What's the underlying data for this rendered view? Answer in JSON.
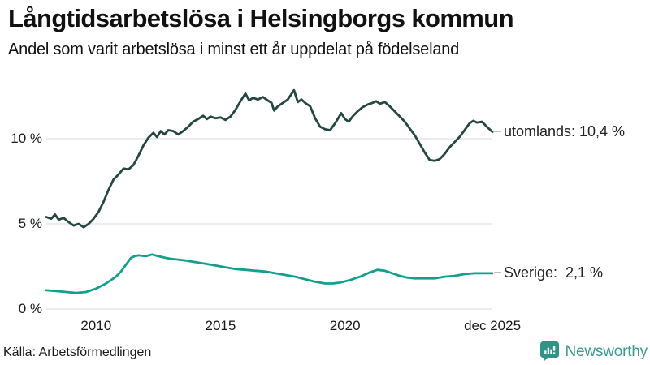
{
  "header": {
    "title": "Långtidsarbetslösa i Helsingborgs kommun",
    "subtitle": "Andel som varit arbetslösa i minst ett år uppdelat på födelseland"
  },
  "footer": {
    "source": "Källa: Arbetsförmedlingen",
    "brand": "Newsworthy"
  },
  "colors": {
    "series_utomlands": "#254742",
    "series_sverige": "#12a08e",
    "grid": "#e1e1e6",
    "label_dash": "#8f8f8f",
    "brand_teal": "#3a9c91",
    "text": "#111111"
  },
  "chart_data": {
    "type": "line",
    "title": "Långtidsarbetslösa i Helsingborgs kommun",
    "subtitle": "Andel som varit arbetslösa i minst ett år uppdelat på födelseland",
    "x": {
      "range": [
        2008,
        2025.92
      ],
      "ticks": [
        {
          "label": "2010",
          "value": 2010
        },
        {
          "label": "2015",
          "value": 2015
        },
        {
          "label": "2020",
          "value": 2020
        },
        {
          "label": "dec 2025",
          "value": 2025.92
        }
      ],
      "grid": false
    },
    "y": {
      "range": [
        0,
        13.2
      ],
      "unit": "%",
      "ticks": [
        {
          "label": "0 %",
          "value": 0
        },
        {
          "label": "5 %",
          "value": 5
        },
        {
          "label": "10 %",
          "value": 10
        }
      ],
      "grid": true
    },
    "legend_position": "right-end-labels",
    "series": [
      {
        "name": "utomlands",
        "end_label": "utomlands: 10,4 %",
        "end_value": 10.4,
        "color": "#254742",
        "points": [
          [
            2008.0,
            5.4
          ],
          [
            2008.2,
            5.3
          ],
          [
            2008.35,
            5.55
          ],
          [
            2008.5,
            5.25
          ],
          [
            2008.7,
            5.35
          ],
          [
            2008.9,
            5.1
          ],
          [
            2009.1,
            4.9
          ],
          [
            2009.3,
            5.0
          ],
          [
            2009.5,
            4.8
          ],
          [
            2009.7,
            5.0
          ],
          [
            2009.9,
            5.3
          ],
          [
            2010.1,
            5.7
          ],
          [
            2010.3,
            6.3
          ],
          [
            2010.5,
            7.0
          ],
          [
            2010.7,
            7.6
          ],
          [
            2010.9,
            7.9
          ],
          [
            2011.1,
            8.25
          ],
          [
            2011.3,
            8.2
          ],
          [
            2011.5,
            8.45
          ],
          [
            2011.7,
            9.0
          ],
          [
            2011.9,
            9.6
          ],
          [
            2012.1,
            10.05
          ],
          [
            2012.3,
            10.35
          ],
          [
            2012.45,
            10.1
          ],
          [
            2012.6,
            10.45
          ],
          [
            2012.75,
            10.25
          ],
          [
            2012.9,
            10.5
          ],
          [
            2013.1,
            10.45
          ],
          [
            2013.3,
            10.25
          ],
          [
            2013.5,
            10.45
          ],
          [
            2013.7,
            10.7
          ],
          [
            2013.9,
            11.0
          ],
          [
            2014.1,
            11.15
          ],
          [
            2014.3,
            11.35
          ],
          [
            2014.45,
            11.15
          ],
          [
            2014.6,
            11.3
          ],
          [
            2014.8,
            11.2
          ],
          [
            2015.0,
            11.25
          ],
          [
            2015.2,
            11.1
          ],
          [
            2015.4,
            11.3
          ],
          [
            2015.6,
            11.7
          ],
          [
            2015.8,
            12.2
          ],
          [
            2016.0,
            12.65
          ],
          [
            2016.15,
            12.25
          ],
          [
            2016.3,
            12.4
          ],
          [
            2016.5,
            12.3
          ],
          [
            2016.7,
            12.45
          ],
          [
            2016.9,
            12.25
          ],
          [
            2017.05,
            12.1
          ],
          [
            2017.15,
            11.65
          ],
          [
            2017.3,
            11.9
          ],
          [
            2017.5,
            12.1
          ],
          [
            2017.7,
            12.3
          ],
          [
            2017.95,
            12.85
          ],
          [
            2018.1,
            12.15
          ],
          [
            2018.25,
            12.3
          ],
          [
            2018.4,
            12.1
          ],
          [
            2018.6,
            11.9
          ],
          [
            2018.8,
            11.2
          ],
          [
            2019.0,
            10.7
          ],
          [
            2019.2,
            10.55
          ],
          [
            2019.4,
            10.5
          ],
          [
            2019.6,
            10.9
          ],
          [
            2019.85,
            11.5
          ],
          [
            2020.0,
            11.15
          ],
          [
            2020.15,
            11.0
          ],
          [
            2020.3,
            11.3
          ],
          [
            2020.5,
            11.6
          ],
          [
            2020.7,
            11.85
          ],
          [
            2020.9,
            12.0
          ],
          [
            2021.1,
            12.1
          ],
          [
            2021.25,
            12.2
          ],
          [
            2021.4,
            12.05
          ],
          [
            2021.6,
            12.15
          ],
          [
            2021.8,
            11.9
          ],
          [
            2022.0,
            11.6
          ],
          [
            2022.2,
            11.3
          ],
          [
            2022.4,
            11.0
          ],
          [
            2022.6,
            10.6
          ],
          [
            2022.8,
            10.2
          ],
          [
            2023.0,
            9.7
          ],
          [
            2023.2,
            9.2
          ],
          [
            2023.4,
            8.75
          ],
          [
            2023.6,
            8.7
          ],
          [
            2023.8,
            8.8
          ],
          [
            2024.0,
            9.1
          ],
          [
            2024.2,
            9.5
          ],
          [
            2024.4,
            9.8
          ],
          [
            2024.6,
            10.1
          ],
          [
            2024.8,
            10.5
          ],
          [
            2025.0,
            10.9
          ],
          [
            2025.15,
            11.05
          ],
          [
            2025.3,
            10.95
          ],
          [
            2025.5,
            11.0
          ],
          [
            2025.7,
            10.7
          ],
          [
            2025.92,
            10.4
          ]
        ]
      },
      {
        "name": "Sverige",
        "end_label": "Sverige:  2,1 %",
        "end_value": 2.1,
        "color": "#12a08e",
        "points": [
          [
            2008.0,
            1.1
          ],
          [
            2008.4,
            1.05
          ],
          [
            2008.8,
            1.0
          ],
          [
            2009.2,
            0.95
          ],
          [
            2009.6,
            1.0
          ],
          [
            2010.0,
            1.2
          ],
          [
            2010.4,
            1.5
          ],
          [
            2010.8,
            1.9
          ],
          [
            2011.0,
            2.2
          ],
          [
            2011.2,
            2.6
          ],
          [
            2011.4,
            3.0
          ],
          [
            2011.55,
            3.1
          ],
          [
            2011.7,
            3.15
          ],
          [
            2012.0,
            3.1
          ],
          [
            2012.25,
            3.2
          ],
          [
            2012.5,
            3.1
          ],
          [
            2012.8,
            3.0
          ],
          [
            2013.0,
            2.95
          ],
          [
            2013.3,
            2.9
          ],
          [
            2013.6,
            2.85
          ],
          [
            2014.0,
            2.75
          ],
          [
            2014.4,
            2.65
          ],
          [
            2014.8,
            2.55
          ],
          [
            2015.2,
            2.45
          ],
          [
            2015.6,
            2.35
          ],
          [
            2016.0,
            2.3
          ],
          [
            2016.4,
            2.25
          ],
          [
            2016.8,
            2.2
          ],
          [
            2017.2,
            2.1
          ],
          [
            2017.6,
            2.0
          ],
          [
            2018.0,
            1.9
          ],
          [
            2018.4,
            1.75
          ],
          [
            2018.8,
            1.6
          ],
          [
            2019.2,
            1.5
          ],
          [
            2019.5,
            1.5
          ],
          [
            2019.8,
            1.55
          ],
          [
            2020.2,
            1.7
          ],
          [
            2020.6,
            1.9
          ],
          [
            2021.0,
            2.15
          ],
          [
            2021.3,
            2.3
          ],
          [
            2021.6,
            2.25
          ],
          [
            2021.9,
            2.1
          ],
          [
            2022.2,
            1.95
          ],
          [
            2022.5,
            1.85
          ],
          [
            2022.8,
            1.8
          ],
          [
            2023.2,
            1.8
          ],
          [
            2023.6,
            1.8
          ],
          [
            2024.0,
            1.9
          ],
          [
            2024.4,
            1.95
          ],
          [
            2024.8,
            2.05
          ],
          [
            2025.2,
            2.1
          ],
          [
            2025.6,
            2.1
          ],
          [
            2025.92,
            2.1
          ]
        ]
      }
    ]
  }
}
